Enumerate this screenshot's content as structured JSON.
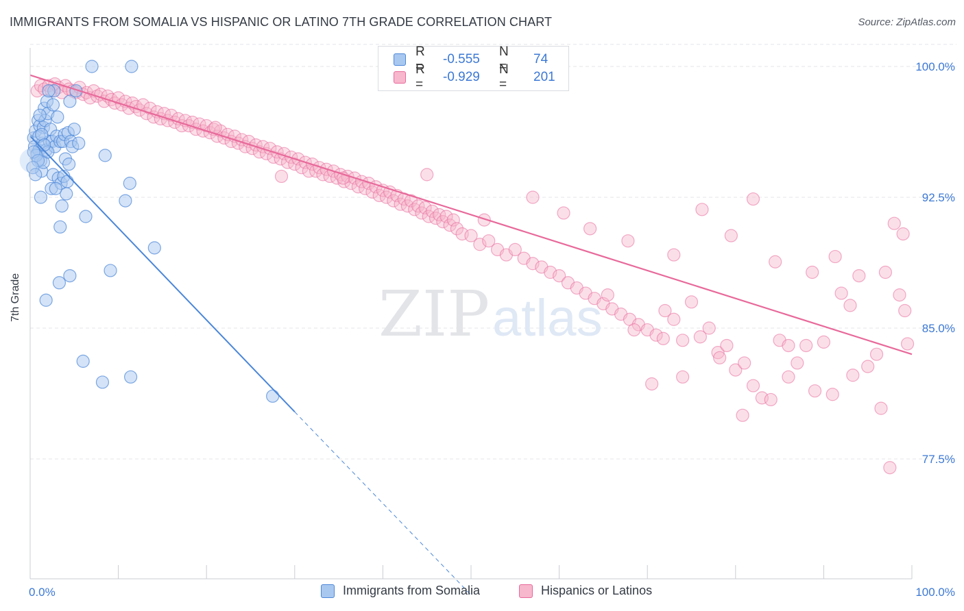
{
  "header": {
    "title": "IMMIGRANTS FROM SOMALIA VS HISPANIC OR LATINO 7TH GRADE CORRELATION CHART",
    "source": "Source: ZipAtlas.com"
  },
  "watermark": {
    "zip": "ZIP",
    "atlas": "atlas"
  },
  "legend_top": {
    "rows": [
      {
        "r_label": "R =",
        "r_value": "-0.555",
        "n_label": "N =",
        "n_value": "74"
      },
      {
        "r_label": "R =",
        "r_value": "-0.929",
        "n_label": "N =",
        "n_value": "201"
      }
    ]
  },
  "legend_bottom": {
    "items": [
      {
        "label": "Immigrants from Somalia"
      },
      {
        "label": "Hispanics or Latinos"
      }
    ]
  },
  "colors": {
    "blue": "#4a86d8",
    "blue_fill": "#a9c8f0",
    "pink": "#e8699a",
    "pink_fill": "#f7b7cc",
    "tick_text": "#3b78d4",
    "grid": "#e4e6ea"
  },
  "chart_data": {
    "type": "scatter",
    "title": "IMMIGRANTS FROM SOMALIA VS HISPANIC OR LATINO 7TH GRADE CORRELATION CHART",
    "xlabel": "",
    "ylabel": "7th Grade",
    "xlim": [
      0,
      100
    ],
    "ylim": [
      70.0,
      101.5
    ],
    "x_tick_labels": [
      "0.0%",
      "100.0%"
    ],
    "y_ticks": [
      {
        "value": 100.0,
        "label": "100.0%"
      },
      {
        "value": 92.5,
        "label": "92.5%"
      },
      {
        "value": 85.0,
        "label": "85.0%"
      },
      {
        "value": 77.5,
        "label": "77.5%"
      }
    ],
    "grid": true,
    "legend_position": "bottom",
    "series": [
      {
        "name": "Immigrants from Somalia",
        "color": "#4a86d8",
        "r": -0.555,
        "n": 74,
        "trend": {
          "x0": 0,
          "y0": 96.0,
          "x1": 30,
          "y1": 80.2,
          "dash_to_x": 50,
          "dash_to_y": 69.7
        },
        "points": [
          [
            0.4,
            95.9
          ],
          [
            0.5,
            95.4
          ],
          [
            0.6,
            96.3
          ],
          [
            0.8,
            95.0
          ],
          [
            0.9,
            96.9
          ],
          [
            1.0,
            95.2
          ],
          [
            1.1,
            96.6
          ],
          [
            1.2,
            94.6
          ],
          [
            1.3,
            94.0
          ],
          [
            1.4,
            95.6
          ],
          [
            1.5,
            96.5
          ],
          [
            1.6,
            97.6
          ],
          [
            1.7,
            96.9
          ],
          [
            1.8,
            95.2
          ],
          [
            1.9,
            98.0
          ],
          [
            2.0,
            97.3
          ],
          [
            2.2,
            95.7
          ],
          [
            2.3,
            96.4
          ],
          [
            2.4,
            93.0
          ],
          [
            2.5,
            95.7
          ],
          [
            2.6,
            93.8
          ],
          [
            2.8,
            95.4
          ],
          [
            3.0,
            96.0
          ],
          [
            3.2,
            93.6
          ],
          [
            3.4,
            95.7
          ],
          [
            3.5,
            93.3
          ],
          [
            3.6,
            92.0
          ],
          [
            3.7,
            95.7
          ],
          [
            3.8,
            93.7
          ],
          [
            3.9,
            96.1
          ],
          [
            4.0,
            94.7
          ],
          [
            4.1,
            92.7
          ],
          [
            4.2,
            93.4
          ],
          [
            4.3,
            96.2
          ],
          [
            4.5,
            98.0
          ],
          [
            4.6,
            95.7
          ],
          [
            4.8,
            95.4
          ],
          [
            5.0,
            96.4
          ],
          [
            5.2,
            98.6
          ],
          [
            5.5,
            95.6
          ],
          [
            1.0,
            96.0
          ],
          [
            1.5,
            94.5
          ],
          [
            2.7,
            98.6
          ],
          [
            2.1,
            98.6
          ],
          [
            0.7,
            94.9
          ],
          [
            1.2,
            92.5
          ],
          [
            3.4,
            90.8
          ],
          [
            6.3,
            91.4
          ],
          [
            3.3,
            87.6
          ],
          [
            4.5,
            88.0
          ],
          [
            1.8,
            86.6
          ],
          [
            6.0,
            83.1
          ],
          [
            8.2,
            81.9
          ],
          [
            9.1,
            88.3
          ],
          [
            10.8,
            92.3
          ],
          [
            11.3,
            93.3
          ],
          [
            14.1,
            89.6
          ],
          [
            11.5,
            100.0
          ],
          [
            7.0,
            100.0
          ],
          [
            8.5,
            94.9
          ],
          [
            11.4,
            82.2
          ],
          [
            27.5,
            81.1
          ],
          [
            0.4,
            95.1
          ],
          [
            1.3,
            96.1
          ],
          [
            2.9,
            93.0
          ],
          [
            4.4,
            94.4
          ],
          [
            0.9,
            94.6
          ],
          [
            2.0,
            95.1
          ],
          [
            3.1,
            97.1
          ],
          [
            1.6,
            95.5
          ],
          [
            0.3,
            94.2
          ],
          [
            0.6,
            93.8
          ],
          [
            1.1,
            97.2
          ],
          [
            2.6,
            97.8
          ]
        ]
      },
      {
        "name": "Hispanics or Latinos",
        "color": "#e8699a",
        "r": -0.929,
        "n": 201,
        "trend": {
          "x0": 0,
          "y0": 99.5,
          "x1": 100,
          "y1": 83.5
        },
        "points": [
          [
            0.8,
            98.6
          ],
          [
            1.2,
            98.9
          ],
          [
            1.6,
            98.7
          ],
          [
            2.1,
            98.9
          ],
          [
            2.4,
            98.6
          ],
          [
            2.8,
            99.0
          ],
          [
            3.2,
            98.8
          ],
          [
            3.6,
            98.5
          ],
          [
            4.0,
            98.9
          ],
          [
            4.4,
            98.7
          ],
          [
            4.8,
            98.6
          ],
          [
            5.2,
            98.5
          ],
          [
            5.6,
            98.8
          ],
          [
            6.0,
            98.4
          ],
          [
            6.4,
            98.5
          ],
          [
            6.8,
            98.2
          ],
          [
            7.2,
            98.6
          ],
          [
            7.6,
            98.3
          ],
          [
            8.0,
            98.4
          ],
          [
            8.4,
            98.0
          ],
          [
            8.8,
            98.3
          ],
          [
            9.2,
            98.1
          ],
          [
            9.6,
            97.9
          ],
          [
            10.0,
            98.2
          ],
          [
            10.4,
            97.8
          ],
          [
            10.8,
            98.0
          ],
          [
            11.2,
            97.6
          ],
          [
            11.6,
            97.9
          ],
          [
            12.0,
            97.7
          ],
          [
            12.4,
            97.5
          ],
          [
            12.8,
            97.8
          ],
          [
            13.2,
            97.3
          ],
          [
            13.6,
            97.6
          ],
          [
            14.0,
            97.1
          ],
          [
            14.4,
            97.4
          ],
          [
            14.8,
            97.0
          ],
          [
            15.2,
            97.3
          ],
          [
            15.6,
            96.9
          ],
          [
            16.0,
            97.2
          ],
          [
            16.4,
            96.8
          ],
          [
            16.8,
            97.0
          ],
          [
            17.2,
            96.6
          ],
          [
            17.6,
            96.9
          ],
          [
            18.0,
            96.6
          ],
          [
            18.4,
            96.8
          ],
          [
            18.8,
            96.4
          ],
          [
            19.2,
            96.7
          ],
          [
            19.6,
            96.3
          ],
          [
            20.0,
            96.6
          ],
          [
            20.4,
            96.2
          ],
          [
            20.8,
            96.4
          ],
          [
            21.2,
            96.0
          ],
          [
            21.6,
            96.3
          ],
          [
            22.0,
            95.9
          ],
          [
            22.4,
            96.1
          ],
          [
            22.8,
            95.7
          ],
          [
            23.2,
            96.0
          ],
          [
            23.6,
            95.6
          ],
          [
            24.0,
            95.8
          ],
          [
            24.4,
            95.4
          ],
          [
            24.8,
            95.7
          ],
          [
            25.2,
            95.3
          ],
          [
            25.6,
            95.5
          ],
          [
            26.0,
            95.1
          ],
          [
            26.4,
            95.4
          ],
          [
            26.8,
            95.0
          ],
          [
            27.2,
            95.3
          ],
          [
            27.6,
            94.8
          ],
          [
            28.0,
            95.1
          ],
          [
            28.4,
            94.7
          ],
          [
            28.8,
            95.0
          ],
          [
            29.2,
            94.5
          ],
          [
            29.6,
            94.8
          ],
          [
            30.0,
            94.4
          ],
          [
            30.4,
            94.7
          ],
          [
            30.8,
            94.2
          ],
          [
            31.2,
            94.5
          ],
          [
            31.6,
            94.0
          ],
          [
            32.0,
            94.4
          ],
          [
            32.4,
            94.0
          ],
          [
            32.8,
            94.2
          ],
          [
            33.2,
            93.8
          ],
          [
            33.6,
            94.1
          ],
          [
            34.0,
            93.7
          ],
          [
            34.4,
            94.0
          ],
          [
            34.8,
            93.6
          ],
          [
            35.2,
            93.8
          ],
          [
            35.6,
            93.4
          ],
          [
            36.0,
            93.7
          ],
          [
            36.4,
            93.3
          ],
          [
            36.8,
            93.6
          ],
          [
            37.2,
            93.1
          ],
          [
            37.6,
            93.4
          ],
          [
            38.0,
            93.0
          ],
          [
            38.4,
            93.3
          ],
          [
            38.8,
            92.8
          ],
          [
            39.2,
            93.1
          ],
          [
            39.6,
            92.6
          ],
          [
            40.0,
            92.9
          ],
          [
            40.4,
            92.5
          ],
          [
            40.8,
            92.8
          ],
          [
            41.2,
            92.3
          ],
          [
            41.6,
            92.6
          ],
          [
            42.0,
            92.1
          ],
          [
            42.4,
            92.4
          ],
          [
            42.8,
            92.0
          ],
          [
            43.2,
            92.3
          ],
          [
            43.6,
            91.8
          ],
          [
            44.0,
            92.0
          ],
          [
            44.4,
            91.6
          ],
          [
            44.8,
            91.9
          ],
          [
            45.2,
            91.4
          ],
          [
            45.6,
            91.7
          ],
          [
            46.0,
            91.3
          ],
          [
            46.4,
            91.5
          ],
          [
            46.8,
            91.1
          ],
          [
            47.2,
            91.4
          ],
          [
            47.6,
            90.9
          ],
          [
            48.0,
            91.2
          ],
          [
            48.4,
            90.7
          ],
          [
            49.0,
            90.4
          ],
          [
            50.0,
            90.3
          ],
          [
            51.0,
            89.8
          ],
          [
            52.0,
            90.0
          ],
          [
            53.0,
            89.5
          ],
          [
            54.0,
            89.2
          ],
          [
            55.0,
            89.5
          ],
          [
            56.0,
            89.0
          ],
          [
            57.0,
            88.7
          ],
          [
            58.0,
            88.5
          ],
          [
            59.0,
            88.2
          ],
          [
            60.0,
            88.0
          ],
          [
            61.0,
            87.6
          ],
          [
            62.0,
            87.3
          ],
          [
            63.0,
            87.0
          ],
          [
            64.0,
            86.7
          ],
          [
            65.0,
            86.4
          ],
          [
            66.0,
            86.1
          ],
          [
            67.0,
            85.8
          ],
          [
            68.0,
            85.5
          ],
          [
            69.0,
            85.2
          ],
          [
            70.0,
            84.9
          ],
          [
            71.0,
            84.6
          ],
          [
            72.0,
            86.0
          ],
          [
            73.0,
            85.5
          ],
          [
            74.0,
            84.3
          ],
          [
            75.0,
            86.5
          ],
          [
            76.0,
            84.5
          ],
          [
            77.0,
            85.0
          ],
          [
            78.0,
            83.6
          ],
          [
            79.0,
            84.0
          ],
          [
            80.0,
            82.6
          ],
          [
            81.0,
            83.0
          ],
          [
            82.0,
            81.7
          ],
          [
            83.0,
            81.0
          ],
          [
            84.0,
            80.9
          ],
          [
            85.0,
            84.3
          ],
          [
            86.0,
            84.0
          ],
          [
            87.0,
            83.0
          ],
          [
            88.0,
            84.0
          ],
          [
            89.0,
            81.4
          ],
          [
            90.0,
            84.2
          ],
          [
            91.0,
            81.2
          ],
          [
            92.0,
            87.0
          ],
          [
            93.0,
            86.3
          ],
          [
            94.0,
            88.0
          ],
          [
            95.0,
            82.8
          ],
          [
            96.0,
            83.5
          ],
          [
            97.0,
            88.2
          ],
          [
            98.0,
            91.0
          ],
          [
            99.0,
            90.4
          ],
          [
            99.5,
            84.1
          ],
          [
            28.5,
            93.7
          ],
          [
            35.5,
            93.6
          ],
          [
            45.0,
            93.8
          ],
          [
            51.5,
            91.2
          ],
          [
            57.0,
            92.5
          ],
          [
            60.5,
            91.6
          ],
          [
            63.5,
            90.7
          ],
          [
            67.8,
            90.0
          ],
          [
            73.0,
            89.2
          ],
          [
            76.2,
            91.8
          ],
          [
            79.5,
            90.3
          ],
          [
            82.0,
            92.4
          ],
          [
            84.5,
            88.8
          ],
          [
            86.0,
            82.2
          ],
          [
            88.7,
            88.2
          ],
          [
            91.3,
            89.1
          ],
          [
            93.3,
            82.3
          ],
          [
            96.5,
            80.4
          ],
          [
            97.5,
            77.0
          ],
          [
            98.6,
            86.9
          ],
          [
            99.2,
            86.0
          ],
          [
            70.5,
            81.8
          ],
          [
            74.0,
            82.2
          ],
          [
            78.2,
            83.3
          ],
          [
            80.8,
            80.0
          ],
          [
            65.5,
            86.9
          ],
          [
            68.5,
            84.9
          ],
          [
            71.8,
            84.4
          ],
          [
            21.0,
            96.5
          ]
        ]
      }
    ]
  }
}
